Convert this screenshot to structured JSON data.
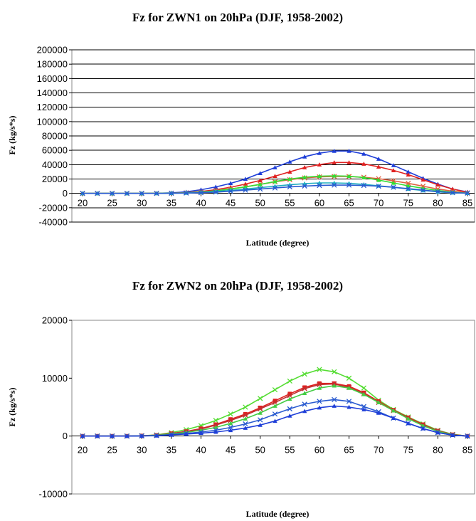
{
  "chart_data": [
    {
      "type": "line",
      "title": "Fz for ZWN1 on 20hPa (DJF, 1958-2002)",
      "xlabel": "Latitude (degree)",
      "ylabel": "Fz (kg/s*s)",
      "xlim": [
        20,
        85
      ],
      "ylim": [
        -40000,
        200000
      ],
      "grid": true,
      "yticks": [
        "-40000",
        "-20000",
        "0",
        "20000",
        "40000",
        "60000",
        "80000",
        "100000",
        "120000",
        "140000",
        "160000",
        "180000",
        "200000"
      ],
      "xticks": [
        "20",
        "25",
        "30",
        "35",
        "40",
        "45",
        "50",
        "55",
        "60",
        "65",
        "70",
        "75",
        "80",
        "85"
      ],
      "x": [
        20,
        22.5,
        25,
        27.5,
        30,
        32.5,
        35,
        37.5,
        40,
        42.5,
        45,
        47.5,
        50,
        52.5,
        55,
        57.5,
        60,
        62.5,
        65,
        67.5,
        70,
        72.5,
        75,
        77.5,
        80,
        82.5,
        85
      ],
      "series": [
        {
          "color": "#1f3fd8",
          "marker": "triangle",
          "values": [
            0,
            0,
            0,
            0,
            0,
            200,
            800,
            2000,
            5000,
            9000,
            14000,
            20000,
            28000,
            36000,
            44000,
            51000,
            56000,
            59000,
            59000,
            55000,
            48000,
            39000,
            30000,
            21000,
            13000,
            6000,
            2000
          ]
        },
        {
          "color": "#e02020",
          "marker": "triangle",
          "values": [
            0,
            0,
            0,
            0,
            0,
            100,
            400,
            1000,
            2500,
            5000,
            8500,
            13000,
            18000,
            24000,
            30000,
            36000,
            40000,
            43000,
            43000,
            41000,
            37000,
            32000,
            26000,
            19000,
            12000,
            6000,
            1500
          ]
        },
        {
          "color": "#e06040",
          "marker": "x",
          "values": [
            0,
            0,
            0,
            0,
            0,
            100,
            300,
            800,
            1800,
            3500,
            6000,
            9000,
            12500,
            16000,
            19000,
            21500,
            23000,
            23500,
            23500,
            22500,
            20500,
            17500,
            14000,
            10000,
            6000,
            3000,
            800
          ]
        },
        {
          "color": "#33dd33",
          "marker": "triangle",
          "values": [
            0,
            0,
            0,
            0,
            0,
            100,
            300,
            800,
            1800,
            3500,
            6000,
            9000,
            12500,
            16500,
            20000,
            22500,
            24000,
            24500,
            24000,
            22000,
            18500,
            14500,
            10500,
            7000,
            4000,
            1500,
            400
          ]
        },
        {
          "color": "#20b0c0",
          "marker": "triangle",
          "values": [
            0,
            0,
            0,
            0,
            0,
            0,
            200,
            500,
            1200,
            2500,
            4000,
            6000,
            8000,
            10000,
            12000,
            13500,
            14500,
            14500,
            14000,
            12500,
            10500,
            8500,
            6000,
            4000,
            2000,
            800,
            200
          ]
        },
        {
          "color": "#2a5bd0",
          "marker": "x",
          "values": [
            0,
            0,
            0,
            0,
            0,
            0,
            150,
            400,
            900,
            1800,
            3000,
            4500,
            6000,
            7500,
            9000,
            10200,
            11000,
            11500,
            11500,
            11000,
            10000,
            8500,
            6500,
            4500,
            2500,
            1000,
            300
          ]
        }
      ]
    },
    {
      "type": "line",
      "title": "Fz for ZWN2 on 20hPa (DJF, 1958-2002)",
      "xlabel": "Latitude (degree)",
      "ylabel": "Fz (kg/s*s)",
      "xlim": [
        20,
        85
      ],
      "ylim": [
        -10000,
        20000
      ],
      "grid": false,
      "yticks": [
        "-10000",
        "0",
        "10000",
        "20000"
      ],
      "xticks": [
        "20",
        "25",
        "30",
        "35",
        "40",
        "45",
        "50",
        "55",
        "60",
        "65",
        "70",
        "75",
        "80",
        "85"
      ],
      "x": [
        20,
        22.5,
        25,
        27.5,
        30,
        32.5,
        35,
        37.5,
        40,
        42.5,
        45,
        47.5,
        50,
        52.5,
        55,
        57.5,
        60,
        62.5,
        65,
        67.5,
        70,
        72.5,
        75,
        77.5,
        80,
        82.5,
        85
      ],
      "series": [
        {
          "color": "#55dd33",
          "marker": "x",
          "values": [
            0,
            0,
            0,
            0,
            50,
            200,
            600,
            1100,
            1800,
            2700,
            3800,
            5000,
            6500,
            8000,
            9500,
            10700,
            11500,
            11100,
            10000,
            8300,
            6200,
            4600,
            3300,
            2100,
            1000,
            300,
            0
          ]
        },
        {
          "color": "#e02020",
          "marker": "square",
          "values": [
            0,
            0,
            0,
            0,
            50,
            150,
            450,
            800,
            1300,
            2000,
            2900,
            3800,
            4900,
            6100,
            7300,
            8400,
            9100,
            9100,
            8600,
            7500,
            6000,
            4500,
            3200,
            2000,
            900,
            250,
            0
          ]
        },
        {
          "color": "#c03030",
          "marker": "x",
          "values": [
            0,
            0,
            0,
            0,
            50,
            150,
            400,
            750,
            1200,
            1900,
            2700,
            3600,
            4700,
            5800,
            7000,
            8200,
            8900,
            9000,
            8400,
            7300,
            5800,
            4400,
            3100,
            1900,
            900,
            250,
            0
          ]
        },
        {
          "color": "#44cc44",
          "marker": "triangle",
          "values": [
            0,
            0,
            0,
            0,
            40,
            120,
            350,
            650,
            1000,
            1500,
            2200,
            3000,
            4000,
            5200,
            6400,
            7400,
            8300,
            8700,
            8300,
            7200,
            5800,
            4400,
            3000,
            1800,
            800,
            200,
            0
          ]
        },
        {
          "color": "#2a5bd0",
          "marker": "x",
          "values": [
            0,
            0,
            0,
            0,
            30,
            80,
            250,
            450,
            700,
            1000,
            1500,
            2100,
            2800,
            3800,
            4700,
            5500,
            6000,
            6300,
            6000,
            5100,
            4200,
            3100,
            2200,
            1300,
            600,
            150,
            0
          ]
        },
        {
          "color": "#1f3fd8",
          "marker": "triangle",
          "values": [
            0,
            0,
            0,
            0,
            20,
            60,
            200,
            350,
            500,
            700,
            1000,
            1400,
            1900,
            2600,
            3500,
            4300,
            4900,
            5200,
            5000,
            4600,
            4000,
            3100,
            2200,
            1300,
            600,
            150,
            0
          ]
        }
      ]
    }
  ]
}
